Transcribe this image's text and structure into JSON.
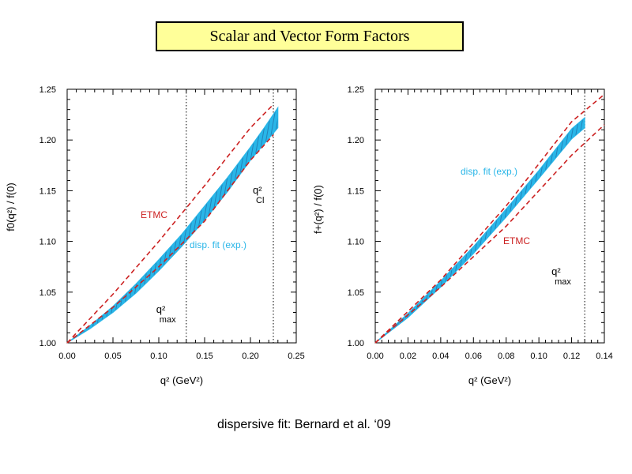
{
  "title": "Scalar and Vector Form Factors",
  "caption": "dispersive fit: Bernard et al. ‘09",
  "colors": {
    "band": "#29b6e8",
    "band_hatch": "#1a3f7a",
    "etmc": "#cc2222",
    "label_blue": "#29b6e8",
    "title_bg": "#ffff99"
  },
  "chart_data": [
    {
      "type": "line",
      "panel": "left",
      "xlabel": "q² (GeV²)",
      "ylabel": "f0(q²) / f(0)",
      "xlim": [
        0.0,
        0.25
      ],
      "ylim": [
        1.0,
        1.25
      ],
      "xticks": [
        0.0,
        0.05,
        0.1,
        0.15,
        0.2,
        0.25
      ],
      "xtick_labels": [
        "0.00",
        "0.05",
        "0.10",
        "0.15",
        "0.20",
        "0.25"
      ],
      "yticks": [
        1.0,
        1.05,
        1.1,
        1.15,
        1.2,
        1.25
      ],
      "ytick_labels": [
        "1.00",
        "1.05",
        "1.10",
        "1.15",
        "1.20",
        "1.25"
      ],
      "vlines": [
        {
          "x": 0.13,
          "style": "dotted",
          "label_main": "q²",
          "label_sub": "max"
        },
        {
          "x": 0.225,
          "style": "dotted",
          "label_main": "q²",
          "label_sub": "Cl"
        }
      ],
      "band": {
        "name": "disp. fit (exp.)",
        "x": [
          0.0,
          0.025,
          0.05,
          0.075,
          0.1,
          0.125,
          0.15,
          0.175,
          0.2,
          0.215,
          0.23
        ],
        "upper": [
          1.0,
          1.017,
          1.036,
          1.058,
          1.082,
          1.107,
          1.135,
          1.163,
          1.193,
          1.212,
          1.232
        ],
        "lower": [
          1.0,
          1.014,
          1.03,
          1.049,
          1.071,
          1.095,
          1.121,
          1.149,
          1.18,
          1.196,
          1.212
        ]
      },
      "series": [
        {
          "name": "ETMC",
          "style": "dashed",
          "x": [
            0.0,
            0.05,
            0.1,
            0.15,
            0.2,
            0.225
          ],
          "values": [
            1.0,
            1.048,
            1.1,
            1.155,
            1.212,
            1.235
          ]
        },
        {
          "name": "",
          "style": "dashed",
          "x": [
            0.0,
            0.05,
            0.1,
            0.15,
            0.2,
            0.225
          ],
          "values": [
            1.0,
            1.035,
            1.075,
            1.12,
            1.18,
            1.205
          ]
        }
      ],
      "annotations": [
        {
          "text": "ETMC",
          "color": "etmc"
        },
        {
          "text": "disp. fit (exp.)",
          "color": "label_blue"
        }
      ]
    },
    {
      "type": "line",
      "panel": "right",
      "xlabel": "q² (GeV²)",
      "ylabel": "f+(q²) / f(0)",
      "xlim": [
        0.0,
        0.14
      ],
      "ylim": [
        1.0,
        1.25
      ],
      "xticks": [
        0.0,
        0.02,
        0.04,
        0.06,
        0.08,
        0.1,
        0.12,
        0.14
      ],
      "xtick_labels": [
        "0.00",
        "0.02",
        "0.04",
        "0.06",
        "0.08",
        "0.10",
        "0.12",
        "0.14"
      ],
      "yticks": [
        1.0,
        1.05,
        1.1,
        1.15,
        1.2,
        1.25
      ],
      "ytick_labels": [
        "1.00",
        "1.05",
        "1.10",
        "1.15",
        "1.20",
        "1.25"
      ],
      "vlines": [
        {
          "x": 0.128,
          "style": "dotted",
          "label_main": "q²",
          "label_sub": "max"
        }
      ],
      "band": {
        "name": "disp. fit (exp.)",
        "x": [
          0.0,
          0.02,
          0.04,
          0.06,
          0.08,
          0.1,
          0.12,
          0.128
        ],
        "upper": [
          1.0,
          1.029,
          1.061,
          1.095,
          1.132,
          1.17,
          1.211,
          1.222
        ],
        "lower": [
          1.0,
          1.025,
          1.055,
          1.088,
          1.124,
          1.162,
          1.201,
          1.212
        ]
      },
      "series": [
        {
          "name": "",
          "style": "dashed",
          "x": [
            0.0,
            0.04,
            0.08,
            0.12,
            0.14
          ],
          "values": [
            1.0,
            1.062,
            1.135,
            1.218,
            1.245
          ]
        },
        {
          "name": "ETMC",
          "style": "dashed",
          "x": [
            0.0,
            0.04,
            0.08,
            0.12,
            0.14
          ],
          "values": [
            1.0,
            1.055,
            1.115,
            1.185,
            1.215
          ]
        }
      ],
      "annotations": [
        {
          "text": "disp. fit (exp.)",
          "color": "label_blue"
        },
        {
          "text": "ETMC",
          "color": "etmc"
        }
      ]
    }
  ]
}
